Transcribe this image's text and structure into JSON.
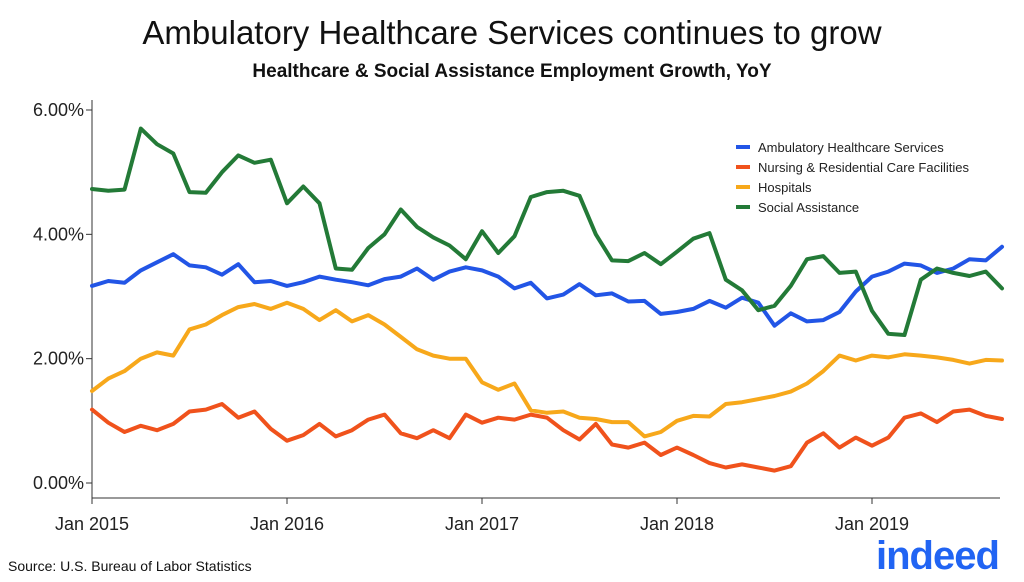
{
  "header": {
    "title": "Ambulatory Healthcare Services continues to grow",
    "subtitle": "Healthcare & Social Assistance Employment Growth, YoY"
  },
  "footer": {
    "source": "Source: U.S. Bureau of Labor Statistics",
    "logo_text": "indeed"
  },
  "colors": {
    "ambulatory": "#2255e6",
    "nursing": "#f0521c",
    "hospitals": "#f7a81b",
    "social": "#237a37",
    "logo": "#2164f3"
  },
  "chart_data": {
    "type": "line",
    "title": "Ambulatory Healthcare Services continues to grow",
    "subtitle": "Healthcare & Social Assistance Employment Growth, YoY",
    "xlabel": "",
    "ylabel": "",
    "ylim": [
      0,
      6
    ],
    "y_ticks": [
      0,
      2,
      4,
      6
    ],
    "y_tick_labels": [
      "0.00%",
      "2.00%",
      "4.00%",
      "6.00%"
    ],
    "x_start": "Jan 2015",
    "x_ticks": [
      0,
      12,
      24,
      36,
      48
    ],
    "x_tick_labels": [
      "Jan 2015",
      "Jan 2016",
      "Jan 2017",
      "Jan 2018",
      "Jan 2019"
    ],
    "x_max_index": 56,
    "legend_position": "top-right",
    "grid": false,
    "series": [
      {
        "name": "Ambulatory Healthcare Services",
        "color": "#2255e6",
        "values": [
          3.17,
          3.25,
          3.22,
          3.42,
          3.55,
          3.68,
          3.5,
          3.47,
          3.35,
          3.52,
          3.23,
          3.25,
          3.17,
          3.23,
          3.32,
          3.27,
          3.23,
          3.18,
          3.28,
          3.32,
          3.45,
          3.27,
          3.4,
          3.47,
          3.42,
          3.32,
          3.13,
          3.22,
          2.97,
          3.03,
          3.2,
          3.02,
          3.05,
          2.92,
          2.93,
          2.72,
          2.75,
          2.8,
          2.93,
          2.82,
          2.98,
          2.9,
          2.53,
          2.73,
          2.6,
          2.62,
          2.75,
          3.08,
          3.32,
          3.4,
          3.53,
          3.5,
          3.38,
          3.45,
          3.6,
          3.58,
          3.8
        ]
      },
      {
        "name": "Nursing & Residential Care Facilities",
        "color": "#f0521c",
        "values": [
          1.18,
          0.97,
          0.82,
          0.92,
          0.85,
          0.95,
          1.15,
          1.18,
          1.27,
          1.05,
          1.15,
          0.87,
          0.68,
          0.77,
          0.95,
          0.75,
          0.85,
          1.02,
          1.1,
          0.8,
          0.72,
          0.85,
          0.72,
          1.1,
          0.97,
          1.05,
          1.02,
          1.1,
          1.05,
          0.85,
          0.7,
          0.95,
          0.62,
          0.57,
          0.65,
          0.45,
          0.57,
          0.45,
          0.32,
          0.25,
          0.3,
          0.25,
          0.2,
          0.27,
          0.65,
          0.8,
          0.57,
          0.73,
          0.6,
          0.73,
          1.05,
          1.12,
          0.98,
          1.15,
          1.18,
          1.08,
          1.03
        ]
      },
      {
        "name": "Hospitals",
        "color": "#f7a81b",
        "values": [
          1.48,
          1.68,
          1.8,
          2.0,
          2.1,
          2.05,
          2.47,
          2.55,
          2.7,
          2.83,
          2.88,
          2.8,
          2.9,
          2.8,
          2.62,
          2.78,
          2.6,
          2.7,
          2.55,
          2.35,
          2.15,
          2.05,
          2.0,
          2.0,
          1.62,
          1.5,
          1.6,
          1.17,
          1.13,
          1.15,
          1.05,
          1.03,
          0.98,
          0.98,
          0.75,
          0.82,
          1.0,
          1.08,
          1.07,
          1.27,
          1.3,
          1.35,
          1.4,
          1.47,
          1.6,
          1.8,
          2.05,
          1.97,
          2.05,
          2.02,
          2.07,
          2.05,
          2.02,
          1.98,
          1.92,
          1.98,
          1.97
        ]
      },
      {
        "name": "Social Assistance",
        "color": "#237a37",
        "values": [
          4.73,
          4.7,
          4.72,
          5.7,
          5.45,
          5.3,
          4.68,
          4.67,
          5.0,
          5.27,
          5.15,
          5.2,
          4.5,
          4.77,
          4.5,
          3.45,
          3.43,
          3.78,
          4.0,
          4.4,
          4.12,
          3.95,
          3.82,
          3.6,
          4.05,
          3.7,
          3.97,
          4.6,
          4.68,
          4.7,
          4.62,
          4.0,
          3.58,
          3.57,
          3.7,
          3.52,
          3.72,
          3.93,
          4.02,
          3.27,
          3.1,
          2.78,
          2.85,
          3.17,
          3.6,
          3.65,
          3.38,
          3.4,
          2.77,
          2.4,
          2.38,
          3.27,
          3.45,
          3.38,
          3.33,
          3.4,
          3.13
        ]
      }
    ]
  }
}
